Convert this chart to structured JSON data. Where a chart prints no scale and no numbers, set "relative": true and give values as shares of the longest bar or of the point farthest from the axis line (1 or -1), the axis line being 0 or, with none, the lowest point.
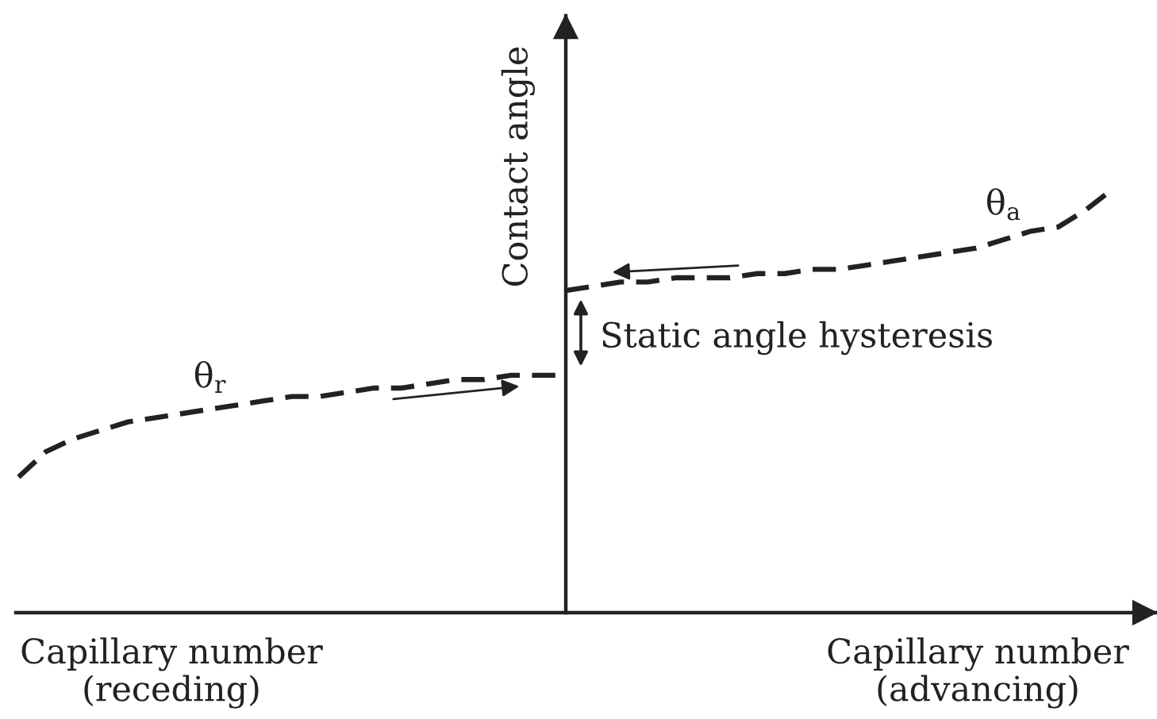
{
  "chart_data": {
    "type": "line",
    "relative": true,
    "ylabel": "Contact angle",
    "line_style": "dashed",
    "categories": [
      null,
      null,
      null,
      null,
      null,
      null,
      null,
      null,
      null,
      null,
      null,
      null,
      null,
      null,
      null,
      null,
      null,
      null,
      null,
      null,
      null,
      null,
      null,
      null,
      null,
      null,
      null,
      null,
      null,
      null,
      null,
      null,
      null,
      null,
      null,
      null,
      null,
      null,
      null,
      null,
      null
    ],
    "series": [
      {
        "name": "θ$_{r}$",
        "color": "#222222",
        "values": [
          0.32,
          0.38,
          0.41,
          0.43,
          0.45,
          0.46,
          0.47,
          0.48,
          0.49,
          0.5,
          0.51,
          0.51,
          0.52,
          0.53,
          0.53,
          0.54,
          0.55,
          0.55,
          0.56,
          0.56,
          0.56,
          null,
          null,
          null,
          null,
          null,
          null,
          null,
          null,
          null,
          null,
          null,
          null,
          null,
          null,
          null,
          null,
          null,
          null,
          null,
          null
        ]
      },
      {
        "name": "θ$_{a}$",
        "color": "#222222",
        "values": [
          null,
          null,
          null,
          null,
          null,
          null,
          null,
          null,
          null,
          null,
          null,
          null,
          null,
          null,
          null,
          null,
          null,
          null,
          null,
          null,
          0.76,
          0.77,
          0.78,
          0.78,
          0.79,
          0.79,
          0.79,
          0.8,
          0.8,
          0.81,
          0.81,
          0.82,
          0.83,
          0.84,
          0.85,
          0.86,
          0.88,
          0.9,
          0.91,
          0.95,
          1.0
        ]
      }
    ],
    "annotations": [
      "Capillary number\n(receding)",
      "Capillary number\n(advancing)",
      "Static angle hysteresis"
    ]
  }
}
